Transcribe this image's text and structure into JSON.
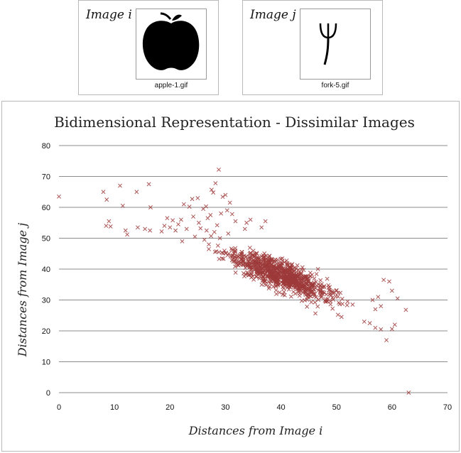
{
  "images": [
    {
      "label": "Image i",
      "file": "apple-1.gif",
      "icon": "apple-icon"
    },
    {
      "label": "Image j",
      "file": "fork-5.gif",
      "icon": "fork-icon"
    }
  ],
  "colors": {
    "marker": "#9e3a3a",
    "grid": "#8c8c8c"
  },
  "chart_data": {
    "type": "scatter",
    "title": "Bidimensional Representation - Dissimilar Images",
    "xlabel": "Distances from Image i",
    "ylabel": "Distances from Image j",
    "xlim": [
      0,
      70
    ],
    "ylim": [
      0,
      80
    ],
    "xticks": [
      0,
      10,
      20,
      30,
      40,
      50,
      60,
      70
    ],
    "yticks": [
      0,
      10,
      20,
      30,
      40,
      50,
      60,
      70,
      80
    ],
    "grid": "horizontal",
    "marker": "x",
    "points": [
      [
        0,
        63.5
      ],
      [
        8,
        65
      ],
      [
        8.5,
        54
      ],
      [
        9,
        55.5
      ],
      [
        9.3,
        53.8
      ],
      [
        8.6,
        62.5
      ],
      [
        11,
        67
      ],
      [
        11.5,
        60.5
      ],
      [
        12,
        52.5
      ],
      [
        12.3,
        51.2
      ],
      [
        14,
        65
      ],
      [
        14.2,
        53.5
      ],
      [
        15.5,
        53
      ],
      [
        16.2,
        67.5
      ],
      [
        16.5,
        60
      ],
      [
        16.4,
        52.5
      ],
      [
        18.5,
        52.2
      ],
      [
        19,
        54
      ],
      [
        19.5,
        56.5
      ],
      [
        20,
        53.5
      ],
      [
        20.5,
        55.8
      ],
      [
        21,
        52.5
      ],
      [
        21.5,
        54.5
      ],
      [
        22,
        56
      ],
      [
        22.2,
        49
      ],
      [
        22.5,
        61
      ],
      [
        23,
        53
      ],
      [
        23.5,
        60.2
      ],
      [
        24,
        62.7
      ],
      [
        24.2,
        57
      ],
      [
        24.5,
        50.5
      ],
      [
        25,
        63
      ],
      [
        25.2,
        55
      ],
      [
        25.5,
        53.2
      ],
      [
        26,
        59.5
      ],
      [
        26.2,
        49.5
      ],
      [
        26.5,
        60.3
      ],
      [
        26.8,
        56.5
      ],
      [
        27.3,
        57.5
      ],
      [
        27.5,
        65.7
      ],
      [
        27.8,
        64.8
      ],
      [
        28.2,
        67.8
      ],
      [
        28.5,
        54.2
      ],
      [
        28.8,
        72.2
      ],
      [
        29.2,
        58
      ],
      [
        29.5,
        63.4
      ],
      [
        30,
        64
      ],
      [
        30.3,
        59
      ],
      [
        30.8,
        61.5
      ],
      [
        31.2,
        57.8
      ],
      [
        31.8,
        55.5
      ],
      [
        33.5,
        53
      ],
      [
        33.8,
        55
      ],
      [
        34.5,
        56
      ],
      [
        36.5,
        53.5
      ],
      [
        37.2,
        55.5
      ],
      [
        28,
        52
      ],
      [
        29,
        50
      ],
      [
        27,
        48
      ],
      [
        30.5,
        51.5
      ],
      [
        26.6,
        52.5
      ],
      [
        27.4,
        50.7
      ]
    ],
    "cluster": {
      "seed": 7,
      "count": 880,
      "x_mean": 40,
      "x_sd": 8,
      "y_mean": 38,
      "slope": -0.68,
      "y_sd": 4
    },
    "outliers": [
      [
        55,
        23
      ],
      [
        56,
        22.5
      ],
      [
        57,
        21
      ],
      [
        58,
        20.5
      ],
      [
        59,
        17
      ],
      [
        60,
        20.6
      ],
      [
        60.5,
        22
      ],
      [
        62.5,
        26.8
      ],
      [
        63,
        0
      ],
      [
        61,
        30.5
      ],
      [
        60,
        33
      ],
      [
        59.5,
        36
      ],
      [
        58.5,
        36.5
      ],
      [
        57.5,
        31
      ],
      [
        56.5,
        30
      ],
      [
        58,
        28
      ],
      [
        57,
        27
      ]
    ]
  }
}
